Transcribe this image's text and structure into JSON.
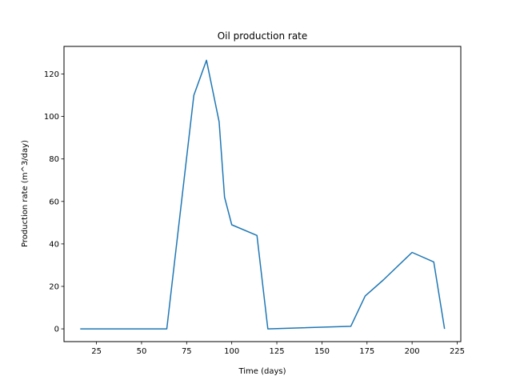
{
  "chart_data": {
    "type": "line",
    "title": "Oil production rate",
    "xlabel": "Time (days)",
    "ylabel": "Production rate (m^3/day)",
    "xlim": [
      7,
      227
    ],
    "ylim": [
      -6,
      133
    ],
    "xticks": [
      25,
      50,
      75,
      100,
      125,
      150,
      175,
      200,
      225
    ],
    "yticks": [
      0,
      20,
      40,
      60,
      80,
      100,
      120
    ],
    "grid": false,
    "legend": "none",
    "series": [
      {
        "color": "#1f77b4",
        "x": [
          16,
          64,
          79,
          86,
          93,
          96,
          100,
          114,
          120,
          166,
          174,
          184,
          200,
          212,
          218
        ],
        "y": [
          0,
          0,
          110,
          126.5,
          97.5,
          62,
          49,
          44,
          0,
          1.2,
          15.5,
          23,
          36,
          31.5,
          0
        ]
      }
    ]
  }
}
